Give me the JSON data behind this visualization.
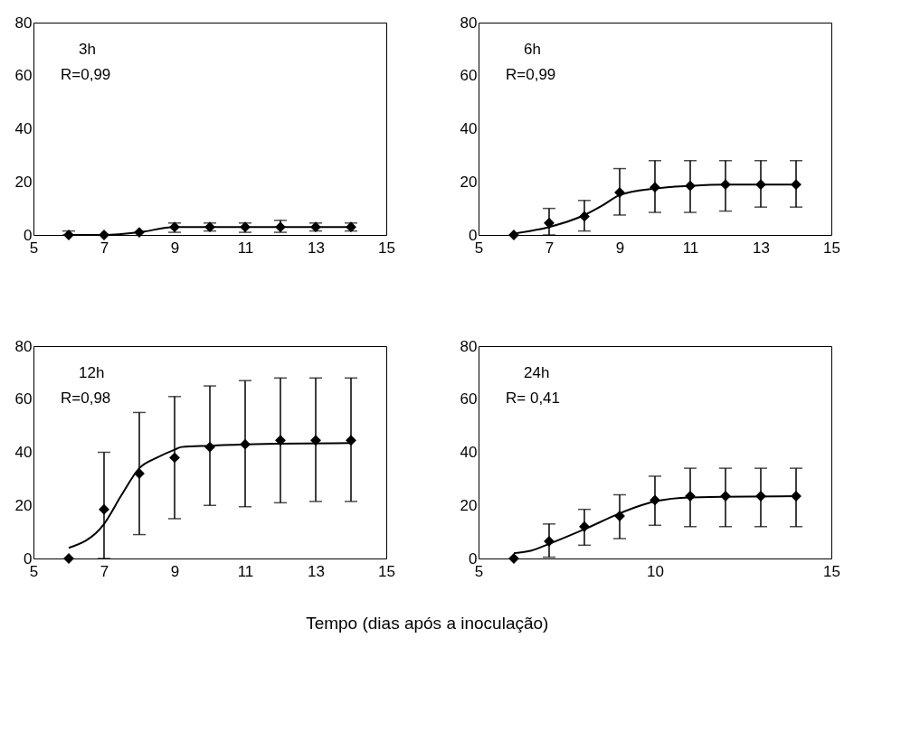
{
  "chart_data": [
    {
      "type": "scatter",
      "annotations": [
        "3h",
        "R=0,99"
      ],
      "xlim": [
        5,
        15
      ],
      "xticks": [
        5,
        7,
        9,
        11,
        13,
        15
      ],
      "ylim": [
        0,
        80
      ],
      "yticks": [
        0,
        20,
        40,
        60,
        80
      ],
      "grid": false,
      "series": [
        {
          "type": "scatter",
          "marker": "diamond",
          "color": "#000000",
          "x": [
            6,
            7,
            8,
            9,
            10,
            11,
            12,
            13,
            14
          ],
          "values": [
            0,
            0,
            1,
            3,
            3,
            3,
            3,
            3,
            3
          ],
          "errors": [
            [
              0,
              1.5
            ],
            null,
            null,
            [
              1,
              4.5
            ],
            [
              1.5,
              4.5
            ],
            [
              1,
              4.5
            ],
            [
              1,
              5.5
            ],
            [
              1.5,
              4.5
            ],
            [
              1.5,
              4.5
            ]
          ]
        },
        {
          "type": "line",
          "color": "#000000",
          "x": [
            6,
            7,
            8,
            9,
            10,
            11,
            12,
            13,
            14
          ],
          "values": [
            0,
            0,
            1,
            3,
            3,
            3,
            3,
            3,
            3
          ]
        }
      ]
    },
    {
      "type": "scatter",
      "annotations": [
        "6h",
        "R=0,99"
      ],
      "xlim": [
        5,
        15
      ],
      "xticks": [
        5,
        7,
        9,
        11,
        13,
        15
      ],
      "ylim": [
        0,
        80
      ],
      "yticks": [
        0,
        20,
        40,
        60,
        80
      ],
      "grid": false,
      "series": [
        {
          "type": "scatter",
          "marker": "diamond",
          "color": "#000000",
          "x": [
            6,
            7,
            8,
            9,
            10,
            11,
            12,
            13,
            14
          ],
          "values": [
            0,
            4.5,
            7,
            16,
            18,
            18.5,
            19,
            19,
            19
          ],
          "errors": [
            null,
            [
              0,
              10
            ],
            [
              1.5,
              13
            ],
            [
              7.5,
              25
            ],
            [
              8.5,
              28
            ],
            [
              8.5,
              28
            ],
            [
              9,
              28
            ],
            [
              10.5,
              28
            ],
            [
              10.5,
              28
            ]
          ]
        },
        {
          "type": "line",
          "color": "#000000",
          "x": [
            6,
            7,
            8,
            8.5,
            9,
            10,
            11,
            12,
            14
          ],
          "values": [
            0.5,
            3,
            7.5,
            11,
            15,
            17.5,
            18.5,
            19,
            19
          ]
        }
      ]
    },
    {
      "type": "scatter",
      "annotations": [
        "12h",
        "R=0,98"
      ],
      "xlim": [
        5,
        15
      ],
      "xticks": [
        5,
        7,
        9,
        11,
        13,
        15
      ],
      "ylim": [
        0,
        80
      ],
      "yticks": [
        0,
        20,
        40,
        60,
        80
      ],
      "grid": false,
      "series": [
        {
          "type": "scatter",
          "marker": "diamond",
          "color": "#000000",
          "x": [
            6,
            7,
            8,
            9,
            10,
            11,
            12,
            13,
            14
          ],
          "values": [
            0,
            18.5,
            32,
            38,
            42,
            43,
            44.5,
            44.5,
            44.5
          ],
          "errors": [
            null,
            [
              0,
              40
            ],
            [
              9,
              55
            ],
            [
              15,
              61
            ],
            [
              20,
              65
            ],
            [
              19.5,
              67
            ],
            [
              21,
              68
            ],
            [
              21.5,
              68
            ],
            [
              21.5,
              68
            ]
          ]
        },
        {
          "type": "line",
          "color": "#000000",
          "x": [
            6,
            7,
            7.5,
            8,
            8.5,
            9,
            9.2,
            10,
            11,
            14
          ],
          "values": [
            4,
            13,
            24,
            34,
            38,
            41,
            42,
            42.5,
            43,
            43.5
          ]
        }
      ]
    },
    {
      "type": "scatter",
      "annotations": [
        "24h",
        "R= 0,41"
      ],
      "xlabel": "Tempo (dias após a inoculação)",
      "xlim": [
        5,
        15
      ],
      "xticks": [
        5,
        10,
        15
      ],
      "ylim": [
        0,
        80
      ],
      "yticks": [
        0,
        20,
        40,
        60,
        80
      ],
      "grid": false,
      "series": [
        {
          "type": "scatter",
          "marker": "diamond",
          "color": "#000000",
          "x": [
            6,
            7,
            8,
            9,
            10,
            11,
            12,
            13,
            14
          ],
          "values": [
            0,
            6.5,
            12,
            16,
            22,
            23.5,
            23.5,
            23.5,
            23.5
          ],
          "errors": [
            null,
            [
              0.5,
              13
            ],
            [
              5,
              18.5
            ],
            [
              7.5,
              24
            ],
            [
              12.5,
              31
            ],
            [
              12,
              34
            ],
            [
              12,
              34
            ],
            [
              12,
              34
            ],
            [
              12,
              34
            ]
          ]
        },
        {
          "type": "line",
          "color": "#000000",
          "x": [
            6,
            6.5,
            7,
            8,
            9,
            10,
            11,
            14
          ],
          "values": [
            2,
            3,
            5.5,
            11,
            17,
            21.5,
            23,
            23.5
          ]
        }
      ]
    }
  ]
}
